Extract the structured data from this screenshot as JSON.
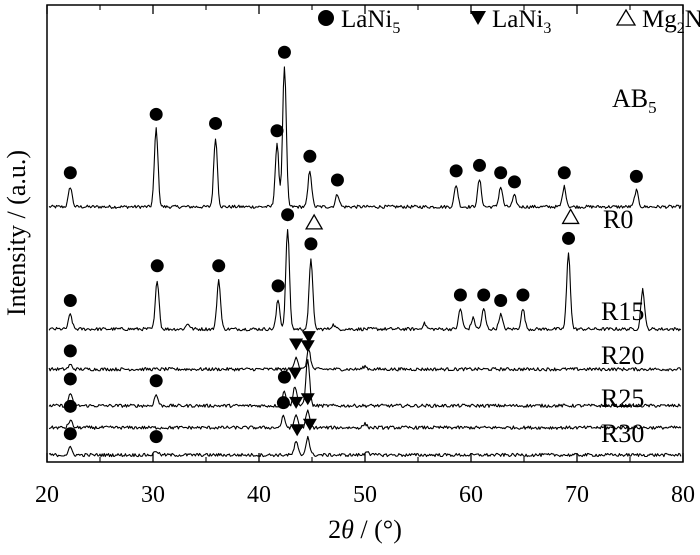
{
  "chart_data": {
    "type": "line",
    "xlabel_parts": {
      "symbol_num": "2",
      "symbol": "θ",
      "unit": " / (°)"
    },
    "ylabel": "Intensity / (a.u.)",
    "xlim": [
      20,
      80
    ],
    "x_ticks": [
      "20",
      "30",
      "40",
      "50",
      "60",
      "70",
      "80"
    ],
    "y_ticks_shown": false,
    "grid": false,
    "legend_position": "top",
    "legend": [
      {
        "marker": "circle",
        "name_main": "LaNi",
        "name_sub": "5",
        "name_tail": ""
      },
      {
        "marker": "triangle-down",
        "name_main": "LaNi",
        "name_sub": "3",
        "name_tail": ""
      },
      {
        "marker": "triangle-up-open",
        "name_main": "Mg",
        "name_sub": "2",
        "name_tail": "Ni"
      }
    ],
    "series": [
      {
        "name_main": "AB",
        "name_sub": "5",
        "offset": 6.8,
        "peaks": [
          [
            22.2,
            0.55
          ],
          [
            30.3,
            2.15
          ],
          [
            35.9,
            1.9
          ],
          [
            41.7,
            1.7
          ],
          [
            42.4,
            3.85
          ],
          [
            44.8,
            1.0
          ],
          [
            47.4,
            0.35
          ],
          [
            58.6,
            0.6
          ],
          [
            60.8,
            0.75
          ],
          [
            62.8,
            0.55
          ],
          [
            64.1,
            0.3
          ],
          [
            68.8,
            0.55
          ],
          [
            75.6,
            0.45
          ]
        ],
        "markers": [
          {
            "x": 22.2,
            "type": "circle"
          },
          {
            "x": 30.3,
            "type": "circle"
          },
          {
            "x": 35.9,
            "type": "circle"
          },
          {
            "x": 41.7,
            "type": "circle"
          },
          {
            "x": 42.4,
            "type": "circle"
          },
          {
            "x": 44.8,
            "type": "circle"
          },
          {
            "x": 47.4,
            "type": "circle"
          },
          {
            "x": 58.6,
            "type": "circle"
          },
          {
            "x": 60.8,
            "type": "circle"
          },
          {
            "x": 62.8,
            "type": "circle"
          },
          {
            "x": 64.1,
            "type": "circle"
          },
          {
            "x": 68.8,
            "type": "circle"
          },
          {
            "x": 75.6,
            "type": "circle"
          }
        ]
      },
      {
        "name_main": "R0",
        "name_sub": "",
        "offset": 3.45,
        "peaks": [
          [
            22.2,
            0.4
          ],
          [
            30.4,
            1.35
          ],
          [
            33.3,
            0.15
          ],
          [
            36.2,
            1.35
          ],
          [
            41.8,
            0.8
          ],
          [
            42.7,
            2.75
          ],
          [
            44.9,
            1.95
          ],
          [
            47.0,
            0.12
          ],
          [
            55.6,
            0.15
          ],
          [
            59.0,
            0.55
          ],
          [
            60.2,
            0.3
          ],
          [
            61.2,
            0.55
          ],
          [
            62.8,
            0.4
          ],
          [
            64.9,
            0.55
          ],
          [
            69.2,
            2.1
          ],
          [
            76.2,
            1.1
          ]
        ],
        "markers": [
          {
            "x": 22.2,
            "type": "circle"
          },
          {
            "x": 30.4,
            "type": "circle"
          },
          {
            "x": 36.2,
            "type": "circle"
          },
          {
            "x": 41.8,
            "type": "circle"
          },
          {
            "x": 42.7,
            "type": "circle"
          },
          {
            "x": 44.9,
            "type": "circle"
          },
          {
            "x": 45.2,
            "type": "triangle-up-open"
          },
          {
            "x": 59.0,
            "type": "circle"
          },
          {
            "x": 61.2,
            "type": "circle"
          },
          {
            "x": 62.8,
            "type": "circle"
          },
          {
            "x": 64.9,
            "type": "circle"
          },
          {
            "x": 69.2,
            "type": "circle"
          },
          {
            "x": 69.4,
            "type": "triangle-up-open"
          }
        ]
      },
      {
        "name_main": "R15",
        "name_sub": "",
        "offset": 2.35,
        "peaks": [
          [
            22.2,
            0.12
          ],
          [
            43.5,
            0.35
          ],
          [
            44.7,
            0.55
          ],
          [
            50.0,
            0.08
          ]
        ],
        "markers": [
          {
            "x": 22.2,
            "type": "circle"
          },
          {
            "x": 43.5,
            "type": "triangle-down"
          },
          {
            "x": 44.7,
            "type": "triangle-down"
          }
        ]
      },
      {
        "name_main": "R20",
        "name_sub": "",
        "offset": 1.35,
        "peaks": [
          [
            22.2,
            0.35
          ],
          [
            30.3,
            0.3
          ],
          [
            42.4,
            0.4
          ],
          [
            43.4,
            0.55
          ],
          [
            44.6,
            1.3
          ]
        ],
        "markers": [
          {
            "x": 22.2,
            "type": "circle"
          },
          {
            "x": 30.3,
            "type": "circle"
          },
          {
            "x": 42.4,
            "type": "circle"
          },
          {
            "x": 43.4,
            "type": "triangle-down"
          },
          {
            "x": 44.6,
            "type": "triangle-down"
          }
        ]
      },
      {
        "name_main": "R25",
        "name_sub": "",
        "offset": 0.75,
        "peaks": [
          [
            22.2,
            0.2
          ],
          [
            42.3,
            0.3
          ],
          [
            43.5,
            0.35
          ],
          [
            44.6,
            0.45
          ],
          [
            50.0,
            0.1
          ]
        ],
        "markers": [
          {
            "x": 22.2,
            "type": "circle"
          },
          {
            "x": 42.3,
            "type": "circle"
          },
          {
            "x": 43.5,
            "type": "triangle-down"
          },
          {
            "x": 44.6,
            "type": "triangle-down"
          }
        ]
      },
      {
        "name_main": "R30",
        "name_sub": "",
        "offset": 0.0,
        "peaks": [
          [
            22.2,
            0.2
          ],
          [
            30.3,
            0.12
          ],
          [
            43.5,
            0.35
          ],
          [
            44.6,
            0.5
          ],
          [
            50.2,
            0.12
          ]
        ],
        "markers": [
          {
            "x": 22.2,
            "type": "circle"
          },
          {
            "x": 30.3,
            "type": "circle"
          },
          {
            "x": 43.6,
            "type": "triangle-down"
          },
          {
            "x": 44.8,
            "type": "triangle-down"
          }
        ]
      }
    ]
  }
}
